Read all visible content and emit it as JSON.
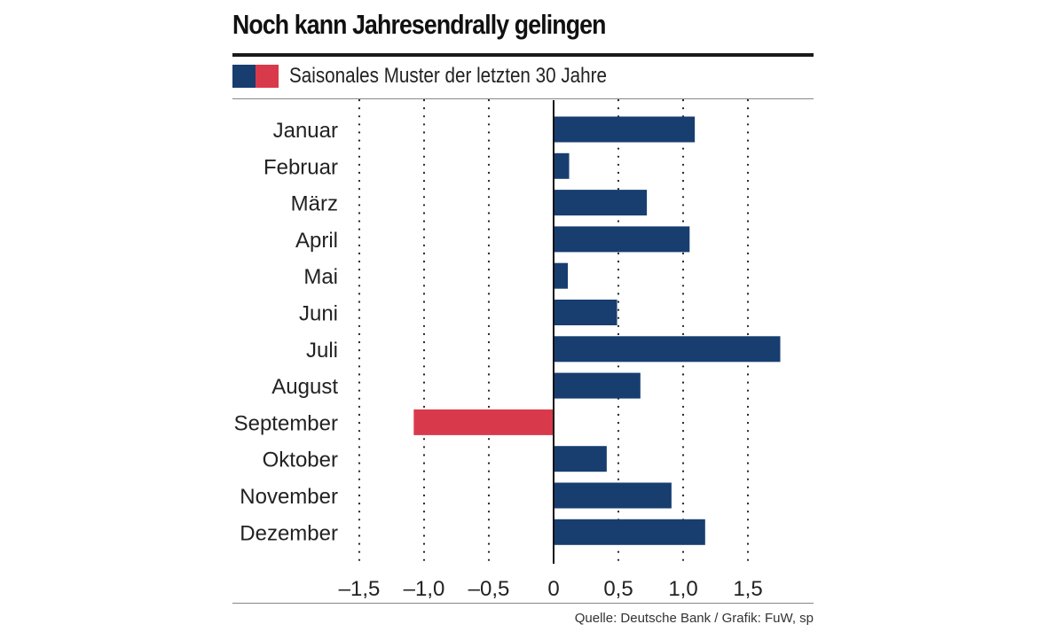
{
  "chart_data": {
    "type": "bar",
    "orientation": "horizontal",
    "title": "Noch kann Jahresendrally gelingen",
    "legend_label": "Saisonales Muster der letzten 30 Jahre",
    "source": "Quelle: Deutsche Bank / Grafik: FuW, sp",
    "categories": [
      "Januar",
      "Februar",
      "März",
      "April",
      "Mai",
      "Juni",
      "Juli",
      "August",
      "September",
      "Oktober",
      "November",
      "Dezember"
    ],
    "values": [
      1.09,
      0.12,
      0.72,
      1.05,
      0.11,
      0.49,
      1.75,
      0.67,
      -1.08,
      0.41,
      0.91,
      1.17
    ],
    "xlim": [
      -1.5,
      2.0
    ],
    "ticks": [
      -1.5,
      -1.0,
      -0.5,
      0,
      0.5,
      1.0,
      1.5
    ],
    "tick_labels": [
      "–1,5",
      "–1,0",
      "–0,5",
      "0",
      "0,5",
      "1,0",
      "1,5"
    ],
    "grid": "dotted vertical",
    "colors": {
      "positive": "#183e70",
      "negative": "#d93a4b"
    }
  }
}
